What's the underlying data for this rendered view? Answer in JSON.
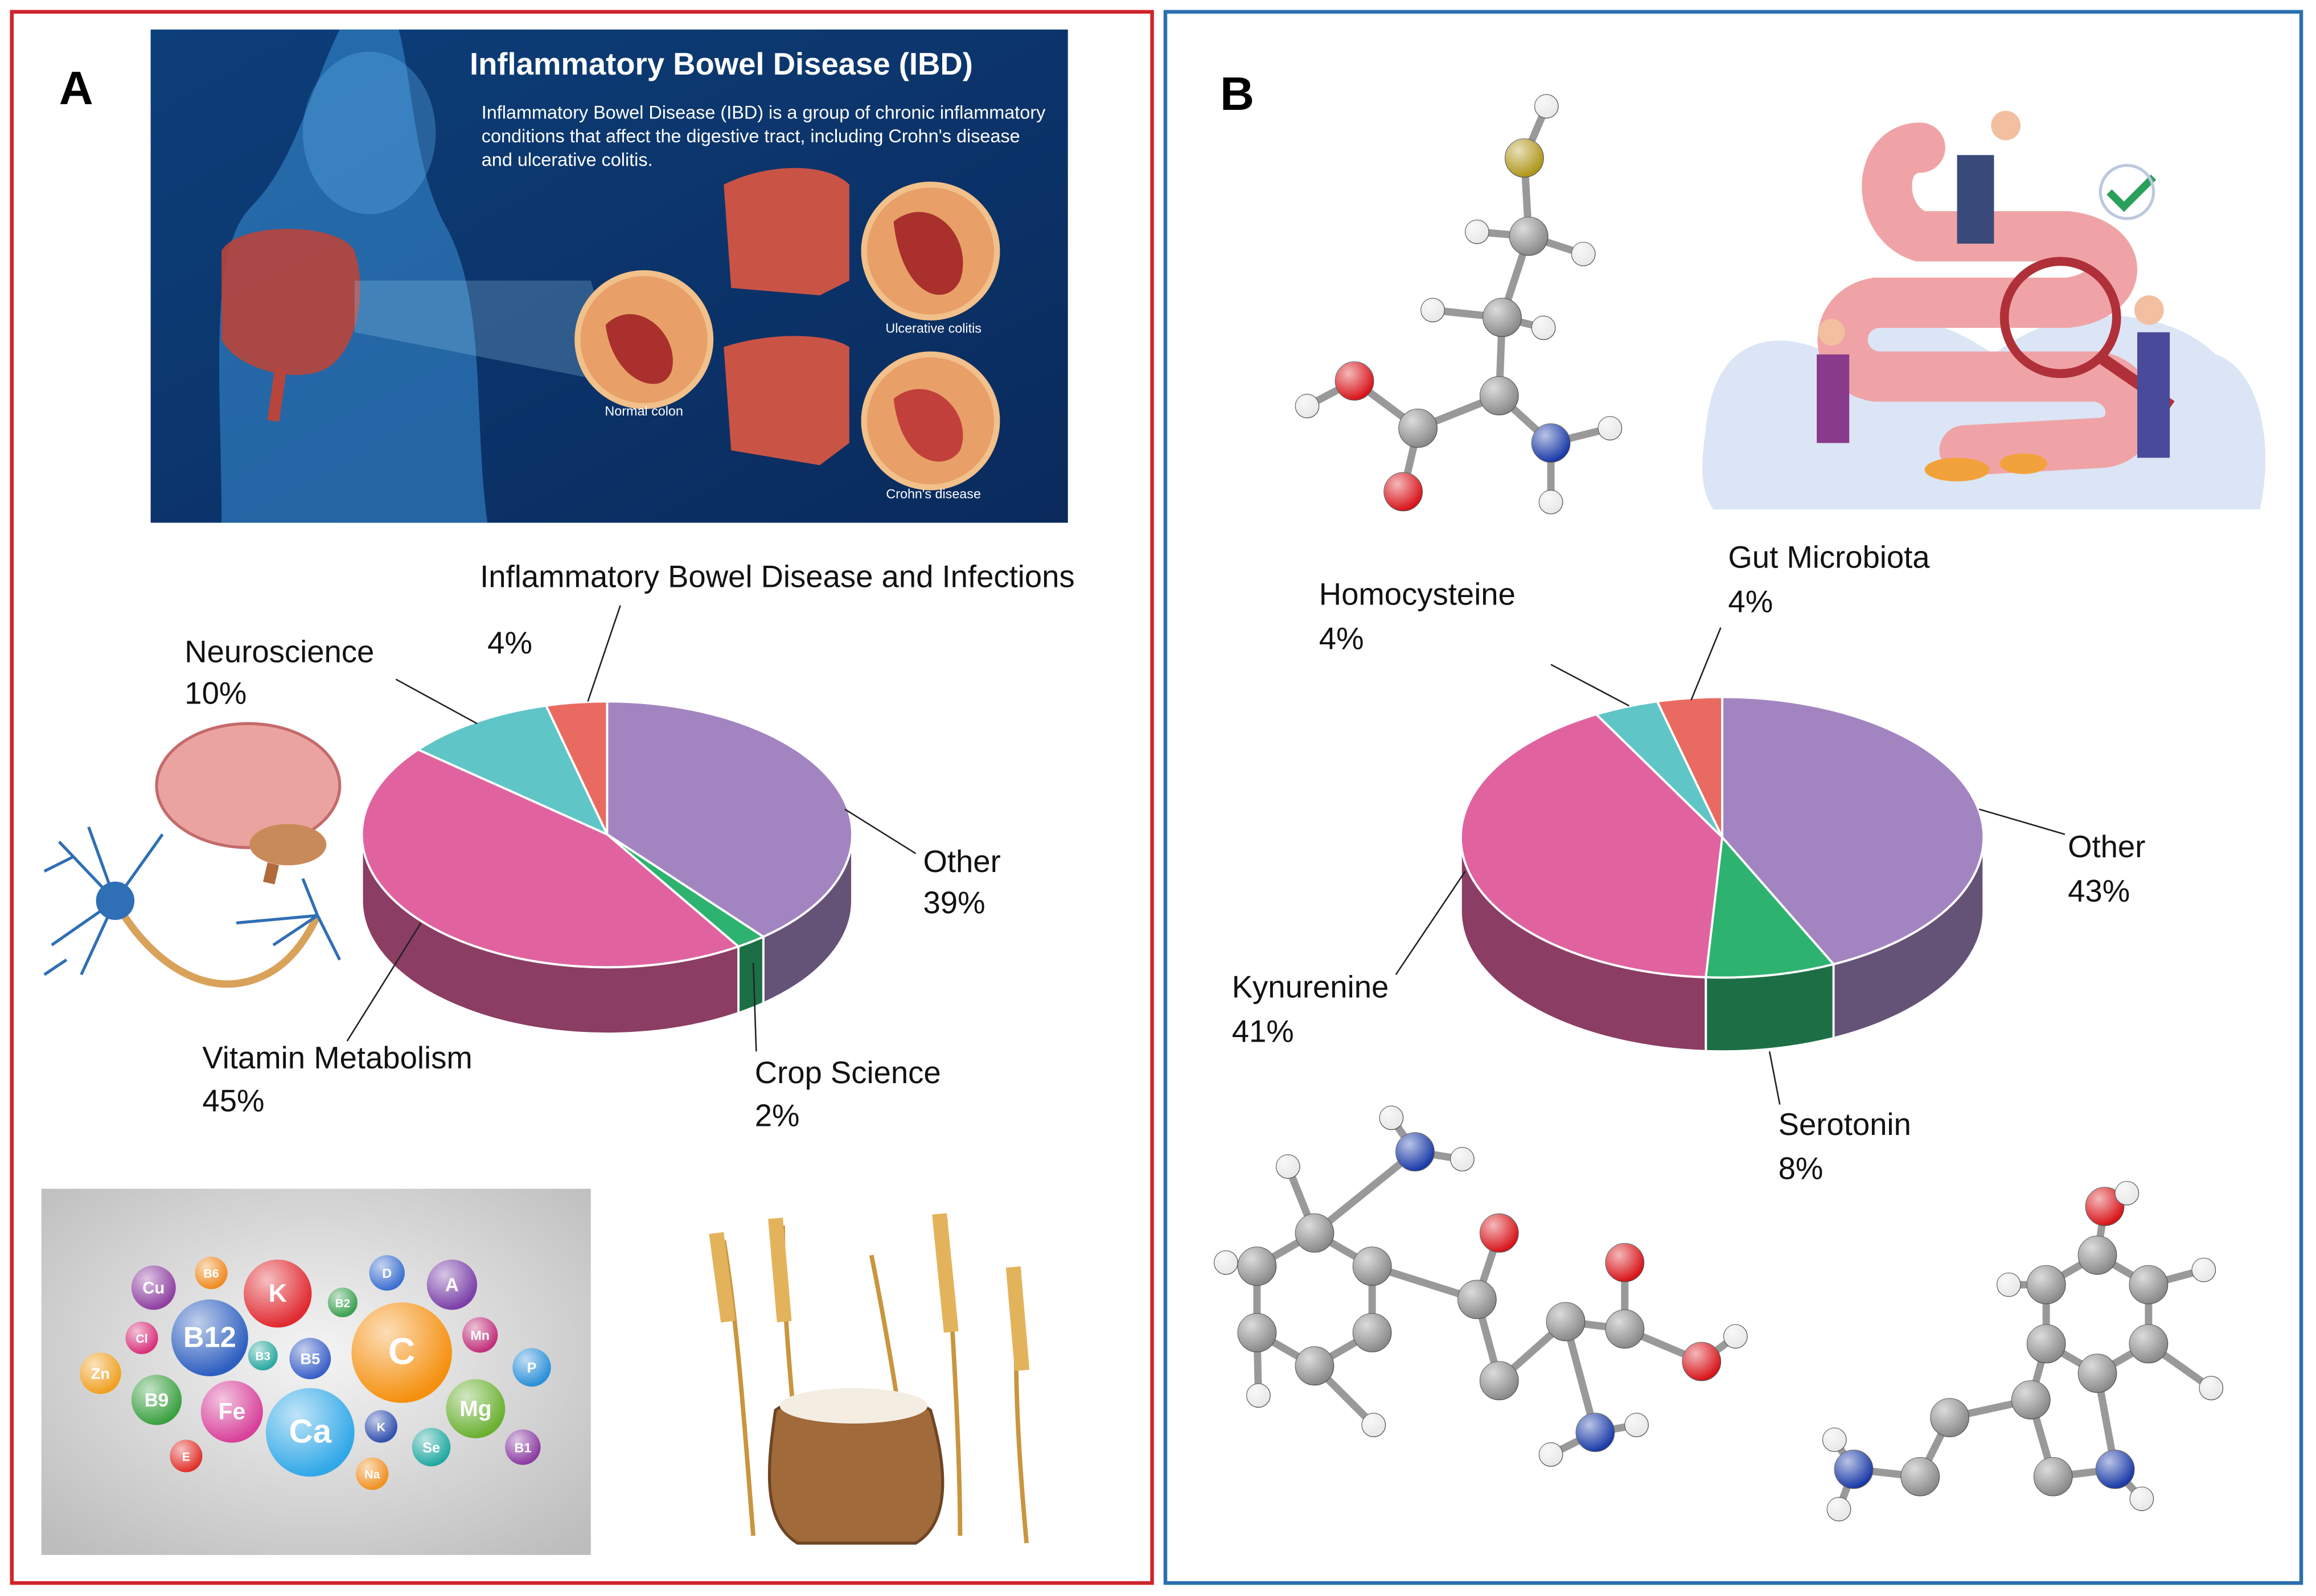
{
  "panel_labels": [
    "A",
    "B"
  ],
  "ibd_poster": {
    "title": "Inflammatory Bowel Disease (IBD)",
    "description": [
      "Inflammatory Bowel Disease (IBD) is a group of chronic inflammatory",
      "conditions that affect the digestive tract, including Crohn's disease",
      "and ulcerative colitis."
    ],
    "labels": [
      "Ulcerative colitis",
      "Normal colon",
      "Crohn's disease"
    ]
  },
  "vitamins": [
    "Cu",
    "B6",
    "K",
    "B2",
    "D",
    "A",
    "Cl",
    "B12",
    "C",
    "Mn",
    "Zn",
    "B3",
    "B5",
    "P",
    "B9",
    "Fe",
    "Ca",
    "Mg",
    "K",
    "Se",
    "B1",
    "E",
    "Na"
  ],
  "chart_data": [
    {
      "type": "pie",
      "categories": [
        "Other",
        "Crop Science",
        "Vitamin Metabolism",
        "Neuroscience",
        "Inflammatory Bowel Disease and Infections"
      ],
      "values": [
        39,
        2,
        45,
        10,
        4
      ],
      "value_labels": [
        "39%",
        "2%",
        "45%",
        "10%",
        "4%"
      ],
      "colors": [
        "#a285c0",
        "#2db36f",
        "#e063a0",
        "#60c5c7",
        "#e96a60"
      ]
    },
    {
      "type": "pie",
      "categories": [
        "Other",
        "Serotonin",
        "Kynurenine",
        "Homocysteine",
        "Gut Microbiota"
      ],
      "values": [
        43,
        8,
        41,
        4,
        4
      ],
      "value_labels": [
        "43%",
        "8%",
        "41%",
        "4%",
        "4%"
      ],
      "colors": [
        "#a285c0",
        "#2db36f",
        "#e063a0",
        "#60c5c7",
        "#e96a60"
      ]
    }
  ]
}
